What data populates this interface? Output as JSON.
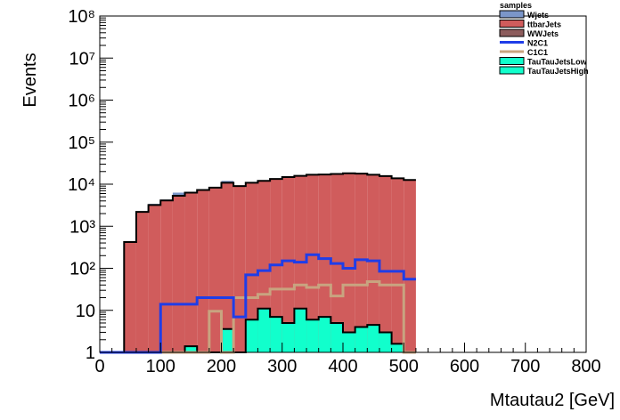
{
  "chart_data": {
    "type": "histogram-stack",
    "xlabel": "Mtautau2 [GeV]",
    "ylabel": "Events",
    "xlim": [
      0,
      800
    ],
    "ylim": [
      1,
      100000000
    ],
    "ylog": true,
    "x_ticks": [
      0,
      100,
      200,
      300,
      400,
      500,
      600,
      700,
      800
    ],
    "y_ticks": [
      {
        "value": 1,
        "label": "1"
      },
      {
        "value": 10,
        "label": "10"
      },
      {
        "value": 100,
        "label": "10²"
      },
      {
        "value": 1000,
        "label": "10³"
      },
      {
        "value": 10000,
        "label": "10⁴"
      },
      {
        "value": 100000,
        "label": "10⁵"
      },
      {
        "value": 1000000,
        "label": "10⁶"
      },
      {
        "value": 10000000,
        "label": "10⁷"
      },
      {
        "value": 100000000,
        "label": "10⁸"
      }
    ],
    "bin_width": 20,
    "bin_edges_start": 0,
    "legend": {
      "title": "samples",
      "position": "top-right",
      "entries": [
        {
          "name": "Wjets",
          "style": "fill",
          "color": "#7b96c9"
        },
        {
          "name": "ttbarJets",
          "style": "fill",
          "color": "#d05c5c"
        },
        {
          "name": "WWJets",
          "style": "fill",
          "color": "#8c5c5c"
        },
        {
          "name": "N2C1",
          "style": "line",
          "color": "#1f3de8"
        },
        {
          "name": "C1C1",
          "style": "line",
          "color": "#c8a480"
        },
        {
          "name": "TauTauJetsLow",
          "style": "fill",
          "color": "#11ffcc"
        },
        {
          "name": "TauTauJetsHigh",
          "style": "fill",
          "color": "#11ffcc"
        }
      ]
    },
    "stack_total": [
      0,
      0,
      420,
      2200,
      3200,
      4100,
      5300,
      6300,
      7300,
      8300,
      10800,
      9000,
      10800,
      12000,
      13300,
      14800,
      15800,
      16800,
      17000,
      17500,
      18200,
      17800,
      16800,
      15600,
      13800,
      12600
    ],
    "wjets_top": [
      0,
      0,
      0,
      0,
      3400,
      4300,
      6300,
      0,
      0,
      0,
      12000,
      0,
      0,
      0,
      0,
      0,
      0,
      0,
      0,
      0,
      0,
      0,
      0,
      0,
      0,
      0
    ],
    "tautau_signal": [
      1,
      1,
      1,
      1,
      1,
      1,
      1,
      1.4,
      1,
      1,
      3.6,
      1,
      6,
      11,
      7,
      5,
      11,
      6,
      7,
      5,
      3,
      4,
      4.5,
      3,
      1.6,
      1
    ],
    "n2c1": [
      1,
      1,
      1,
      1,
      1,
      14,
      14,
      14,
      20,
      20,
      20,
      7,
      70,
      88,
      120,
      150,
      140,
      210,
      170,
      130,
      100,
      160,
      150,
      85,
      85,
      55
    ],
    "c1c1": [
      1,
      1,
      1,
      1,
      1,
      1,
      1,
      1,
      1,
      9.5,
      1,
      20,
      20,
      24,
      32,
      32,
      40,
      35,
      40,
      22,
      40,
      40,
      48,
      40,
      40,
      1
    ]
  }
}
